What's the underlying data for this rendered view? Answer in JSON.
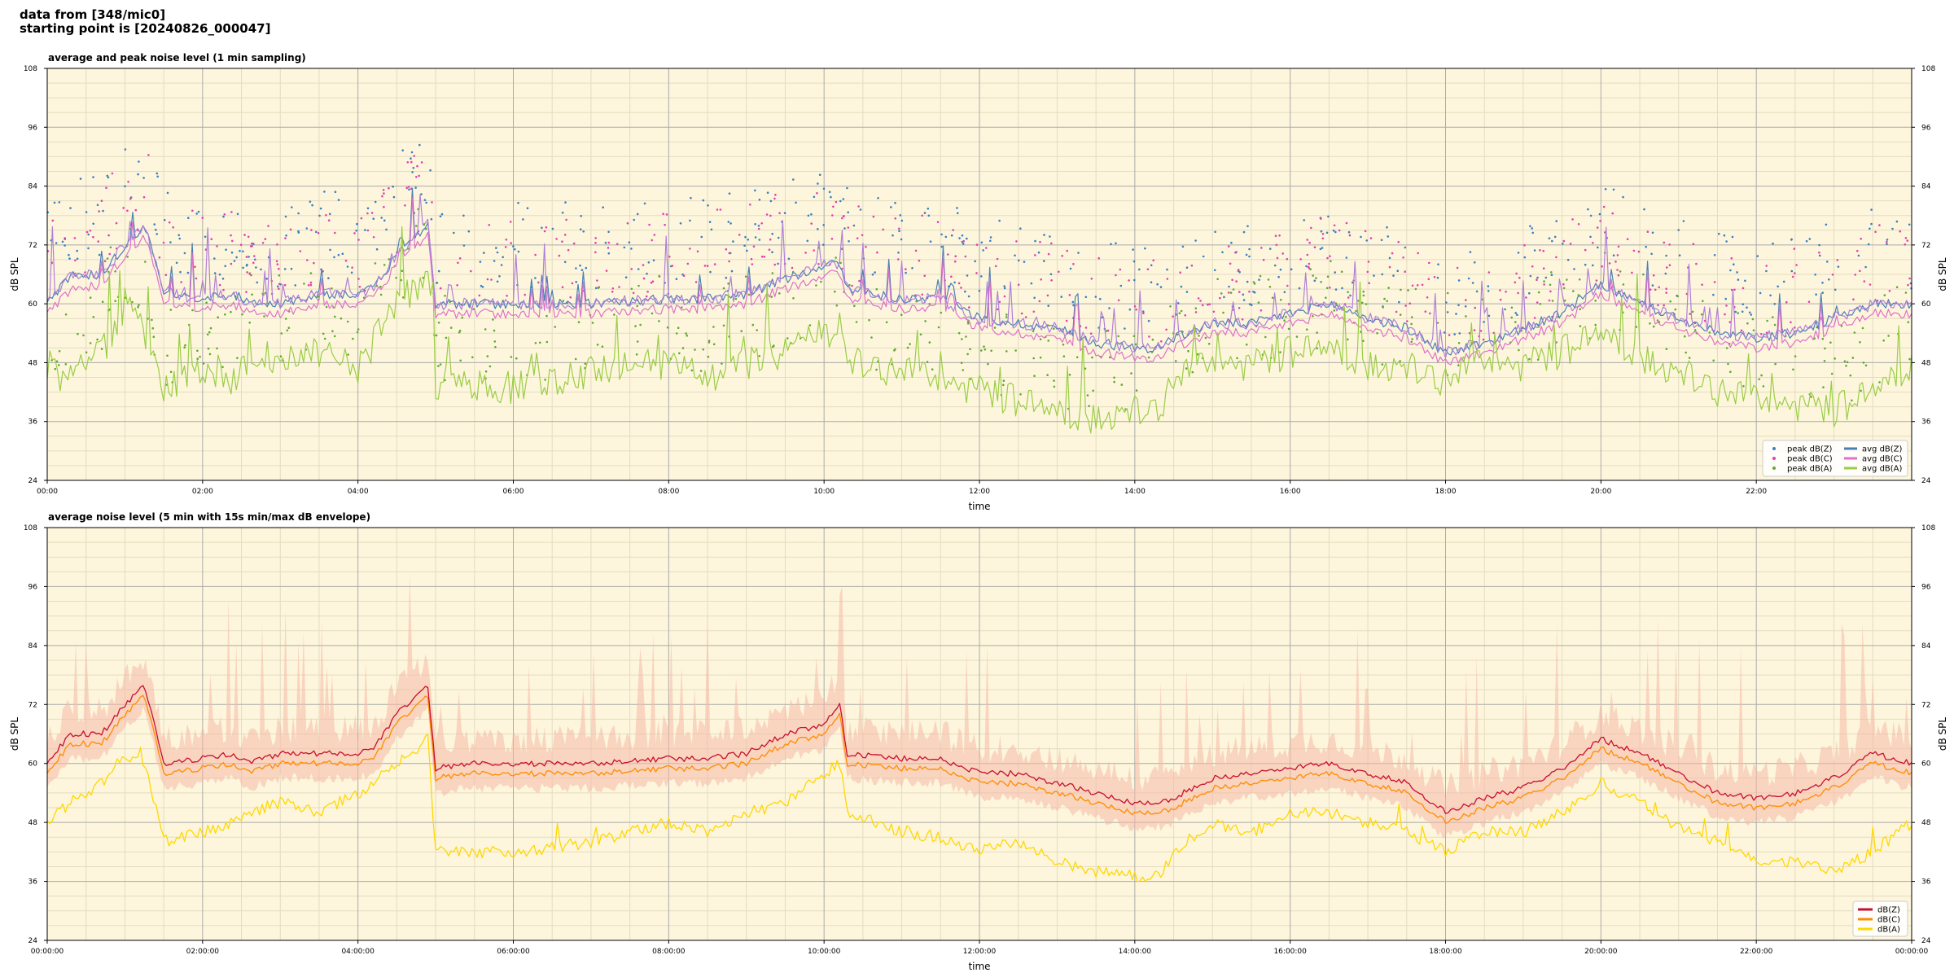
{
  "header": {
    "line1": "data from [348/mic0]",
    "line2": "starting point is [20240826_000047]"
  },
  "colors": {
    "plot_bg": "#fdf6dc",
    "grid_major": "#aaaaaa",
    "grid_minor": "#e4dcc0",
    "peakZ": "#3a7fc1",
    "peakC": "#e63fb0",
    "peakA": "#5fa832",
    "avgZ": "#4a7fb5",
    "avgC": "#e070c8",
    "avgA": "#9acd45",
    "avgOverlay": "#b07fd8",
    "env": "#f5b8a8",
    "dBZ": "#c8102e",
    "dBC": "#ff8c00",
    "dBA": "#ffd700"
  },
  "chart_data": [
    {
      "type": "line",
      "title": "average and peak noise level (1 min sampling)",
      "xlabel": "time",
      "ylabel": "dB SPL",
      "xlim_hours": [
        0,
        24
      ],
      "ylim": [
        24,
        108
      ],
      "yticks": [
        24,
        36,
        48,
        60,
        72,
        84,
        96,
        108
      ],
      "xtick_labels": [
        "00:00",
        "02:00",
        "04:00",
        "06:00",
        "08:00",
        "10:00",
        "12:00",
        "14:00",
        "16:00",
        "18:00",
        "20:00",
        "22:00"
      ],
      "grid": true,
      "legend_position": "bottom-right",
      "legend": [
        {
          "label": "peak dB(Z)",
          "kind": "marker",
          "color": "#3a7fc1"
        },
        {
          "label": "avg dB(Z)",
          "kind": "line",
          "color": "#4a7fb5"
        },
        {
          "label": "peak dB(C)",
          "kind": "marker",
          "color": "#e63fb0"
        },
        {
          "label": "avg dB(C)",
          "kind": "line",
          "color": "#e070c8"
        },
        {
          "label": "peak dB(A)",
          "kind": "marker",
          "color": "#5fa832"
        },
        {
          "label": "avg dB(A)",
          "kind": "line",
          "color": "#9acd45"
        }
      ],
      "series": [
        {
          "name": "avg dB(Z)",
          "x": [
            0,
            0.3,
            0.7,
            1.0,
            1.25,
            1.5,
            2.0,
            2.4,
            2.6,
            3.0,
            3.5,
            4.0,
            4.2,
            4.5,
            4.9,
            5.0,
            5.5,
            6.0,
            7.0,
            8.0,
            8.5,
            9.0,
            9.5,
            10.0,
            10.2,
            10.3,
            11.0,
            11.5,
            12.0,
            12.5,
            13.0,
            13.5,
            14.0,
            14.3,
            14.5,
            15.0,
            15.5,
            16.0,
            16.5,
            17.0,
            17.5,
            18.0,
            18.5,
            19.0,
            19.5,
            20.0,
            20.5,
            21.0,
            21.5,
            22.0,
            22.5,
            23.0,
            23.5,
            24.0
          ],
          "y": [
            60,
            66,
            66,
            72,
            76,
            62,
            61,
            62,
            60,
            60,
            62,
            62,
            63,
            70,
            76,
            60,
            60,
            60,
            60,
            61,
            61,
            62,
            65,
            68,
            68,
            63,
            61,
            61,
            57,
            56,
            55,
            52,
            51,
            51,
            53,
            56,
            56,
            58,
            60,
            57,
            55,
            50,
            52,
            55,
            58,
            64,
            60,
            57,
            54,
            53,
            54,
            57,
            60,
            60
          ]
        },
        {
          "name": "avg dB(C)",
          "x": [
            0,
            0.3,
            0.7,
            1.0,
            1.25,
            1.5,
            2.0,
            2.4,
            2.6,
            3.0,
            3.5,
            4.0,
            4.2,
            4.5,
            4.9,
            5.0,
            5.5,
            6.0,
            7.0,
            8.0,
            8.5,
            9.0,
            9.5,
            10.0,
            10.2,
            10.3,
            11.0,
            11.5,
            12.0,
            12.5,
            13.0,
            13.5,
            14.0,
            14.3,
            14.5,
            15.0,
            15.5,
            16.0,
            16.5,
            17.0,
            17.5,
            18.0,
            18.5,
            19.0,
            19.5,
            20.0,
            20.5,
            21.0,
            21.5,
            22.0,
            22.5,
            23.0,
            23.5,
            24.0
          ],
          "y": [
            58,
            63,
            64,
            70,
            74,
            60,
            59,
            60,
            58,
            58,
            60,
            60,
            61,
            68,
            74,
            58,
            58,
            58,
            58,
            59,
            59,
            60,
            63,
            66,
            66,
            61,
            59,
            59,
            55,
            54,
            53,
            50,
            49,
            49,
            51,
            54,
            54,
            56,
            58,
            55,
            53,
            48,
            50,
            53,
            56,
            62,
            58,
            55,
            52,
            51,
            52,
            55,
            58,
            58
          ]
        },
        {
          "name": "avg dB(A)",
          "x": [
            0,
            0.3,
            0.7,
            1.0,
            1.25,
            1.5,
            2.0,
            2.4,
            2.6,
            3.0,
            3.5,
            4.0,
            4.2,
            4.5,
            4.9,
            5.0,
            5.5,
            6.0,
            7.0,
            8.0,
            8.5,
            9.0,
            9.5,
            10.0,
            10.2,
            10.3,
            11.0,
            11.5,
            12.0,
            12.5,
            13.0,
            13.5,
            14.0,
            14.3,
            14.5,
            15.0,
            15.5,
            16.0,
            16.5,
            17.0,
            17.5,
            18.0,
            18.5,
            19.0,
            19.5,
            20.0,
            20.5,
            21.0,
            21.5,
            22.0,
            22.5,
            23.0,
            23.5,
            24.0
          ],
          "y": [
            48,
            44,
            50,
            60,
            55,
            42,
            47,
            44,
            50,
            48,
            50,
            46,
            52,
            60,
            66,
            44,
            43,
            43,
            46,
            48,
            44,
            48,
            50,
            54,
            56,
            47,
            46,
            44,
            42,
            40,
            38,
            37,
            37,
            38,
            44,
            48,
            47,
            50,
            51,
            48,
            46,
            44,
            48,
            47,
            50,
            54,
            50,
            45,
            42,
            40,
            39,
            38,
            42,
            48
          ]
        }
      ]
    },
    {
      "type": "line",
      "title": "average noise level (5 min with 15s min/max dB envelope)",
      "xlabel": "time",
      "ylabel": "dB SPL",
      "xlim_hours": [
        0,
        24
      ],
      "ylim": [
        24,
        108
      ],
      "yticks": [
        24,
        36,
        48,
        60,
        72,
        84,
        96,
        108
      ],
      "xtick_labels": [
        "00:00:00",
        "02:00:00",
        "04:00:00",
        "06:00:00",
        "08:00:00",
        "10:00:00",
        "12:00:00",
        "14:00:00",
        "16:00:00",
        "18:00:00",
        "20:00:00",
        "22:00:00",
        "00:00:00"
      ],
      "grid": true,
      "legend_position": "bottom-right",
      "legend": [
        {
          "label": "dB(Z)",
          "color": "#c8102e"
        },
        {
          "label": "dB(C)",
          "color": "#ff8c00"
        },
        {
          "label": "dB(A)",
          "color": "#ffd700"
        }
      ],
      "series": [
        {
          "name": "dB(Z)",
          "x": [
            0,
            0.3,
            0.7,
            1.0,
            1.25,
            1.5,
            2.0,
            2.4,
            2.6,
            3.0,
            3.5,
            4.0,
            4.2,
            4.5,
            4.9,
            5.0,
            5.5,
            6.0,
            7.0,
            8.0,
            8.5,
            9.0,
            9.5,
            10.0,
            10.2,
            10.3,
            11.0,
            11.5,
            12.0,
            12.5,
            13.0,
            13.5,
            14.0,
            14.3,
            14.5,
            15.0,
            15.5,
            16.0,
            16.5,
            17.0,
            17.5,
            18.0,
            18.5,
            19.0,
            19.5,
            20.0,
            20.5,
            21.0,
            21.5,
            22.0,
            22.5,
            23.0,
            23.5,
            24.0
          ],
          "y": [
            60,
            66,
            66,
            72,
            76,
            60,
            61,
            62,
            60,
            62,
            62,
            62,
            63,
            70,
            76,
            59,
            60,
            60,
            60,
            61,
            61,
            62,
            66,
            68,
            72,
            62,
            61,
            61,
            58,
            58,
            56,
            54,
            52,
            52,
            53,
            57,
            58,
            59,
            60,
            58,
            56,
            50,
            53,
            55,
            59,
            65,
            62,
            58,
            54,
            53,
            54,
            57,
            62,
            60
          ]
        },
        {
          "name": "dB(C)",
          "x": [
            0,
            0.3,
            0.7,
            1.0,
            1.25,
            1.5,
            2.0,
            2.4,
            2.6,
            3.0,
            3.5,
            4.0,
            4.2,
            4.5,
            4.9,
            5.0,
            5.5,
            6.0,
            7.0,
            8.0,
            8.5,
            9.0,
            9.5,
            10.0,
            10.2,
            10.3,
            11.0,
            11.5,
            12.0,
            12.5,
            13.0,
            13.5,
            14.0,
            14.3,
            14.5,
            15.0,
            15.5,
            16.0,
            16.5,
            17.0,
            17.5,
            18.0,
            18.5,
            19.0,
            19.5,
            20.0,
            20.5,
            21.0,
            21.5,
            22.0,
            22.5,
            23.0,
            23.5,
            24.0
          ],
          "y": [
            58,
            64,
            64,
            70,
            74,
            58,
            59,
            60,
            58,
            60,
            60,
            60,
            61,
            68,
            74,
            57,
            58,
            58,
            58,
            59,
            59,
            60,
            64,
            66,
            70,
            60,
            59,
            59,
            56,
            56,
            54,
            52,
            50,
            50,
            51,
            55,
            56,
            57,
            58,
            56,
            54,
            48,
            51,
            53,
            57,
            63,
            60,
            56,
            52,
            51,
            52,
            55,
            60,
            58
          ]
        },
        {
          "name": "dB(A)",
          "x": [
            0,
            0.3,
            0.7,
            1.0,
            1.25,
            1.5,
            2.0,
            2.4,
            2.6,
            3.0,
            3.5,
            4.0,
            4.2,
            4.5,
            4.9,
            5.0,
            5.5,
            6.0,
            7.0,
            8.0,
            8.5,
            9.0,
            9.5,
            10.0,
            10.2,
            10.3,
            11.0,
            11.5,
            12.0,
            12.5,
            13.0,
            13.5,
            14.0,
            14.3,
            14.5,
            15.0,
            15.5,
            16.0,
            16.5,
            17.0,
            17.5,
            18.0,
            18.5,
            19.0,
            19.5,
            20.0,
            20.5,
            21.0,
            21.5,
            22.0,
            22.5,
            23.0,
            23.5,
            24.0
          ],
          "y": [
            48,
            52,
            56,
            62,
            60,
            44,
            46,
            48,
            50,
            52,
            50,
            54,
            56,
            60,
            65,
            42,
            42,
            42,
            44,
            48,
            46,
            50,
            52,
            58,
            60,
            50,
            46,
            45,
            42,
            44,
            40,
            38,
            37,
            37,
            42,
            48,
            46,
            50,
            50,
            48,
            46,
            42,
            46,
            46,
            50,
            56,
            52,
            47,
            44,
            40,
            40,
            38,
            42,
            48
          ]
        }
      ]
    }
  ]
}
